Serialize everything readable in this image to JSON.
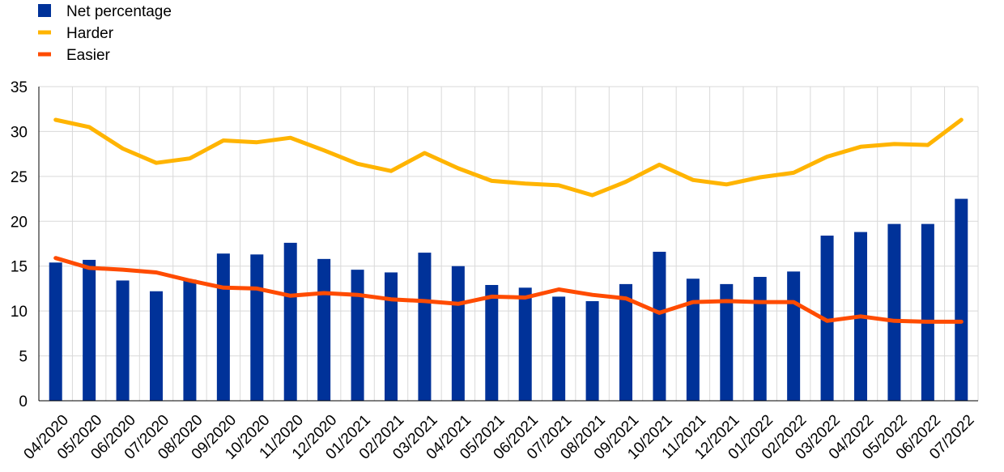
{
  "chart_data": {
    "type": "bar",
    "categories": [
      "04/2020",
      "05/2020",
      "06/2020",
      "07/2020",
      "08/2020",
      "09/2020",
      "10/2020",
      "11/2020",
      "12/2020",
      "01/2021",
      "02/2021",
      "03/2021",
      "04/2021",
      "05/2021",
      "06/2021",
      "07/2021",
      "08/2021",
      "09/2021",
      "10/2021",
      "11/2021",
      "12/2021",
      "01/2022",
      "02/2022",
      "03/2022",
      "04/2022",
      "05/2022",
      "06/2022",
      "07/2022"
    ],
    "series": [
      {
        "name": "Net percentage",
        "kind": "bar",
        "color": "#003299",
        "values": [
          15.4,
          15.7,
          13.4,
          12.2,
          13.5,
          16.4,
          16.3,
          17.6,
          15.8,
          14.6,
          14.3,
          16.5,
          15.0,
          12.9,
          12.6,
          11.6,
          11.1,
          13.0,
          16.6,
          13.6,
          13.0,
          13.8,
          14.4,
          18.4,
          18.8,
          19.7,
          19.7,
          22.5
        ]
      },
      {
        "name": "Harder",
        "kind": "line",
        "color": "#FFB400",
        "values": [
          31.3,
          30.5,
          28.1,
          26.5,
          27.0,
          29.0,
          28.8,
          29.3,
          27.9,
          26.4,
          25.6,
          27.6,
          25.9,
          24.5,
          24.2,
          24.0,
          22.9,
          24.4,
          26.3,
          24.6,
          24.1,
          24.9,
          25.4,
          27.2,
          28.3,
          28.6,
          28.5,
          31.3
        ]
      },
      {
        "name": "Easier",
        "kind": "line",
        "color": "#FF4B00",
        "values": [
          15.9,
          14.8,
          14.6,
          14.3,
          13.4,
          12.6,
          12.5,
          11.7,
          12.0,
          11.8,
          11.3,
          11.1,
          10.8,
          11.6,
          11.5,
          12.4,
          11.8,
          11.4,
          9.8,
          11.0,
          11.1,
          11.0,
          11.0,
          8.9,
          9.4,
          8.9,
          8.8,
          8.8
        ]
      }
    ],
    "yticks": [
      "0",
      "5",
      "10",
      "15",
      "20",
      "25",
      "30",
      "35"
    ],
    "ylim": [
      0,
      35
    ],
    "grid": true,
    "legend_position": "top-left"
  }
}
